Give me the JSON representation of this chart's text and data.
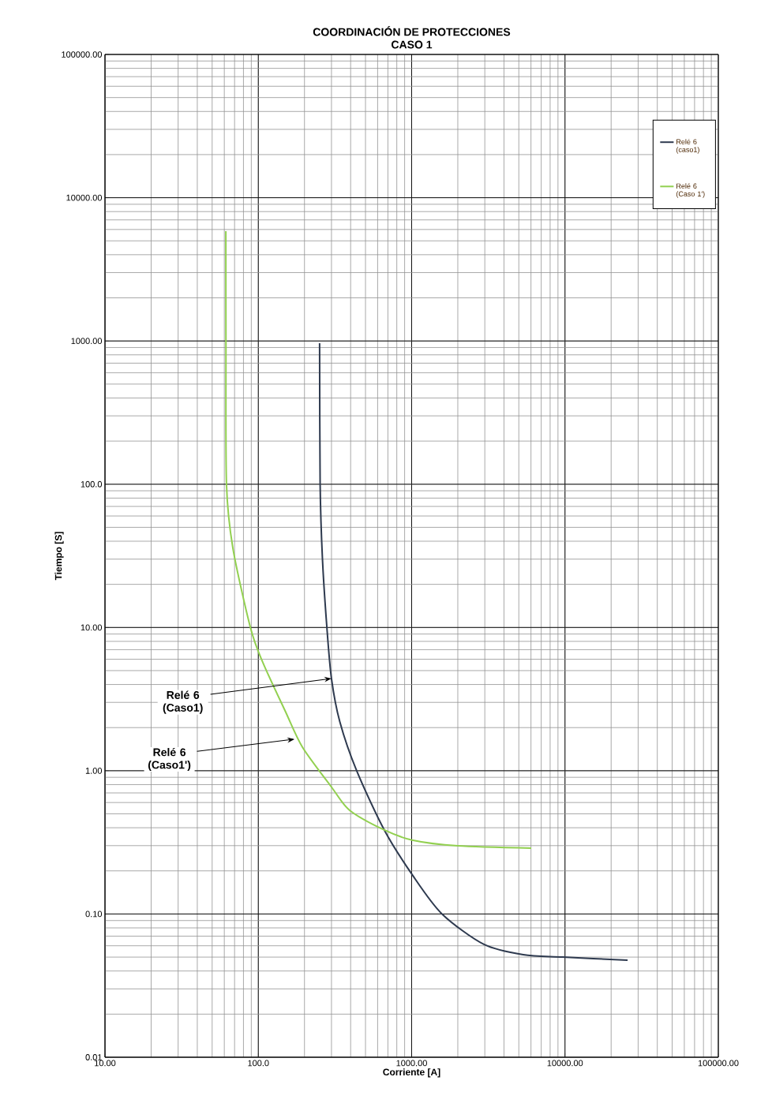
{
  "chart_data": {
    "type": "line",
    "title": "COORDINACIÓN  DE PROTECCIONES",
    "subtitle": "CASO 1",
    "xlabel": "Corriente [A]",
    "ylabel": "Tiempo [S]",
    "log": "xy",
    "grid": true,
    "legend": "top right",
    "marker": "none",
    "line_style": "solid",
    "xlim": [
      10,
      100000
    ],
    "ylim": [
      0.01,
      100000
    ],
    "xticks": [
      {
        "value": 10,
        "label": "10.00"
      },
      {
        "value": 100,
        "label": "100.0"
      },
      {
        "value": 1000,
        "label": "1000.00"
      },
      {
        "value": 10000,
        "label": "10000.00"
      },
      {
        "value": 100000,
        "label": "100000.00"
      }
    ],
    "yticks": [
      {
        "value": 0.01,
        "label": "0.01"
      },
      {
        "value": 0.1,
        "label": "0.10"
      },
      {
        "value": 1,
        "label": "1.00"
      },
      {
        "value": 10,
        "label": "10.00"
      },
      {
        "value": 100,
        "label": "100.0"
      },
      {
        "value": 1000,
        "label": "1000.00"
      },
      {
        "value": 10000,
        "label": "10000.00"
      },
      {
        "value": 100000,
        "label": "100000.00"
      }
    ],
    "series": [
      {
        "name": "Relé 6 (caso1)",
        "color": "#2e3a4f",
        "x": [
          251,
          253,
          262,
          280,
          300,
          340,
          438,
          663,
          1019,
          1578,
          2958,
          5345,
          9680,
          25600
        ],
        "values": [
          965,
          100,
          30,
          10,
          4.4,
          2.2,
          1.0,
          0.386,
          0.185,
          0.1,
          0.0614,
          0.052,
          0.05,
          0.0476
        ]
      },
      {
        "name": "Relé 6 (Caso 1')",
        "color": "#92d050",
        "x": [
          61.4,
          61.5,
          62,
          68.2,
          89,
          107,
          150,
          194,
          300,
          394,
          663,
          1019,
          2000,
          6026
        ],
        "values": [
          5840,
          1000,
          100,
          36,
          9.9,
          5.7,
          2.6,
          1.46,
          0.77,
          0.53,
          0.386,
          0.327,
          0.299,
          0.288
        ]
      }
    ],
    "annotations": [
      {
        "text": "Relé 6 (Caso1)",
        "x": 300,
        "y": 4.4
      },
      {
        "text": "Relé 6 (Caso1')",
        "x": 172,
        "y": 1.66
      }
    ]
  }
}
